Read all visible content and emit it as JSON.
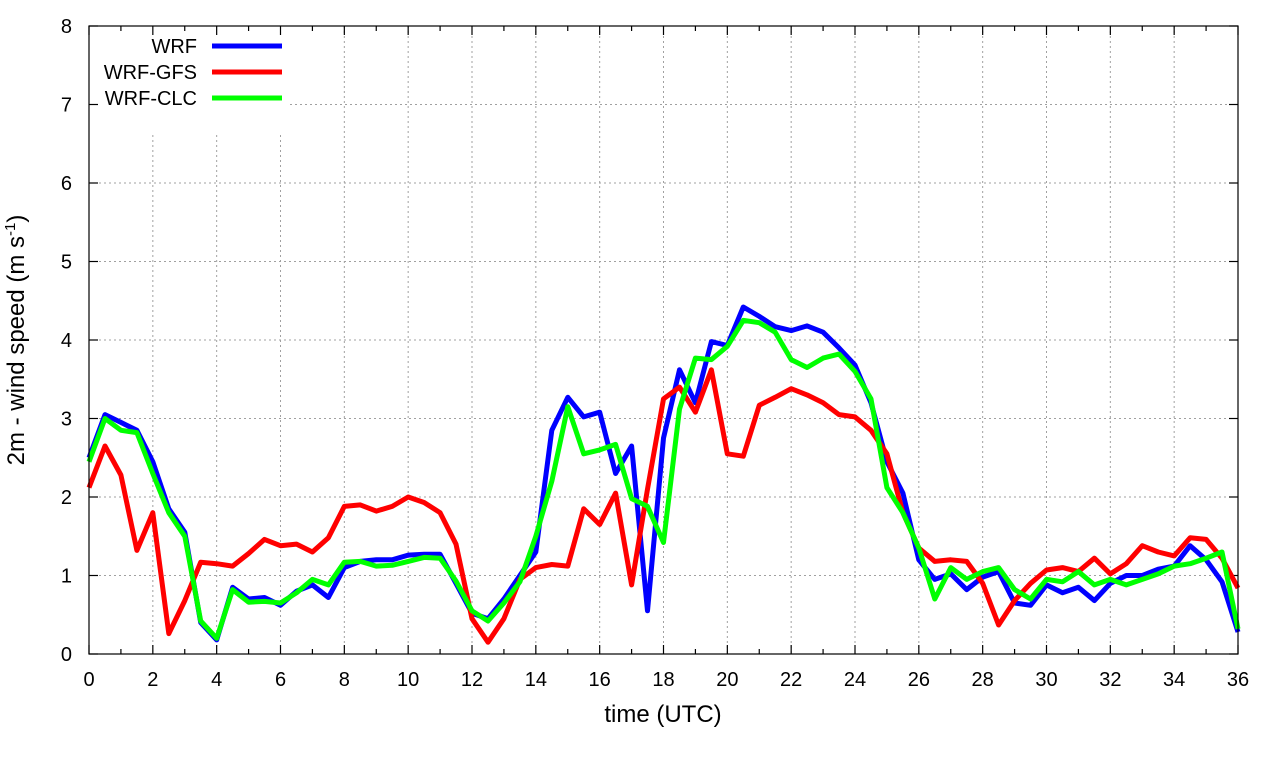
{
  "chart_data": {
    "type": "line",
    "xlabel": "time (UTC)",
    "ylabel_main": "2m - wind speed  (m s",
    "ylabel_sup": "-1",
    "ylabel_close": ")",
    "xlim": [
      0,
      36
    ],
    "ylim": [
      0,
      8
    ],
    "xticks": [
      0,
      2,
      4,
      6,
      8,
      10,
      12,
      14,
      16,
      18,
      20,
      22,
      24,
      26,
      28,
      30,
      32,
      34,
      36
    ],
    "yticks": [
      0,
      1,
      2,
      3,
      4,
      5,
      6,
      7,
      8
    ],
    "grid": true,
    "legend_position": "top-left",
    "x": [
      0,
      0.5,
      1,
      1.5,
      2,
      2.5,
      3,
      3.5,
      4,
      4.5,
      5,
      5.5,
      6,
      6.5,
      7,
      7.5,
      8,
      8.5,
      9,
      9.5,
      10,
      10.5,
      11,
      11.5,
      12,
      12.5,
      13,
      13.5,
      14,
      14.5,
      15,
      15.5,
      16,
      16.5,
      17,
      17.5,
      18,
      18.5,
      19,
      19.5,
      20,
      20.5,
      21,
      21.5,
      22,
      22.5,
      23,
      23.5,
      24,
      24.5,
      25,
      25.5,
      26,
      26.5,
      27,
      27.5,
      28,
      28.5,
      29,
      29.5,
      30,
      30.5,
      31,
      31.5,
      32,
      32.5,
      33,
      33.5,
      34,
      34.5,
      35,
      35.5,
      36
    ],
    "series": [
      {
        "name": "WRF",
        "color": "#0000ff",
        "values": [
          2.5,
          3.05,
          2.95,
          2.85,
          2.45,
          1.85,
          1.55,
          0.4,
          0.18,
          0.85,
          0.7,
          0.72,
          0.62,
          0.8,
          0.88,
          0.72,
          1.1,
          1.18,
          1.2,
          1.2,
          1.26,
          1.27,
          1.27,
          0.9,
          0.52,
          0.45,
          0.7,
          1.0,
          1.3,
          2.85,
          3.27,
          3.02,
          3.08,
          2.3,
          2.65,
          0.55,
          2.75,
          3.62,
          3.2,
          3.98,
          3.93,
          4.42,
          4.3,
          4.17,
          4.12,
          4.18,
          4.1,
          3.9,
          3.68,
          3.2,
          2.45,
          2.05,
          1.2,
          0.95,
          1.02,
          0.82,
          0.98,
          1.05,
          0.65,
          0.62,
          0.88,
          0.78,
          0.85,
          0.68,
          0.9,
          1.0,
          1.0,
          1.08,
          1.12,
          1.38,
          1.2,
          0.92,
          0.28
        ]
      },
      {
        "name": "WRF-GFS",
        "color": "#ff0000",
        "values": [
          2.12,
          2.65,
          2.28,
          1.32,
          1.8,
          0.26,
          0.68,
          1.17,
          1.15,
          1.12,
          1.28,
          1.46,
          1.38,
          1.4,
          1.3,
          1.48,
          1.88,
          1.9,
          1.82,
          1.88,
          2.0,
          1.93,
          1.8,
          1.4,
          0.45,
          0.15,
          0.45,
          0.95,
          1.1,
          1.14,
          1.12,
          1.85,
          1.65,
          2.05,
          0.88,
          2.1,
          3.25,
          3.4,
          3.08,
          3.62,
          2.55,
          2.52,
          3.17,
          3.27,
          3.38,
          3.3,
          3.2,
          3.05,
          3.02,
          2.85,
          2.55,
          1.8,
          1.35,
          1.18,
          1.2,
          1.18,
          0.9,
          0.37,
          0.68,
          0.9,
          1.07,
          1.1,
          1.05,
          1.22,
          1.02,
          1.15,
          1.38,
          1.3,
          1.25,
          1.48,
          1.46,
          1.22,
          0.84
        ]
      },
      {
        "name": "WRF-CLC",
        "color": "#00ff00",
        "values": [
          2.45,
          3.0,
          2.85,
          2.82,
          2.3,
          1.8,
          1.5,
          0.42,
          0.2,
          0.82,
          0.66,
          0.67,
          0.65,
          0.78,
          0.95,
          0.88,
          1.17,
          1.18,
          1.12,
          1.13,
          1.18,
          1.23,
          1.22,
          0.93,
          0.55,
          0.42,
          0.65,
          0.92,
          1.5,
          2.2,
          3.15,
          2.55,
          2.6,
          2.67,
          1.98,
          1.88,
          1.42,
          3.12,
          3.77,
          3.75,
          3.92,
          4.25,
          4.22,
          4.1,
          3.75,
          3.65,
          3.77,
          3.82,
          3.6,
          3.25,
          2.12,
          1.8,
          1.35,
          0.7,
          1.1,
          0.95,
          1.05,
          1.1,
          0.82,
          0.7,
          0.95,
          0.92,
          1.05,
          0.88,
          0.95,
          0.88,
          0.95,
          1.02,
          1.12,
          1.15,
          1.22,
          1.3,
          0.32
        ]
      }
    ]
  }
}
